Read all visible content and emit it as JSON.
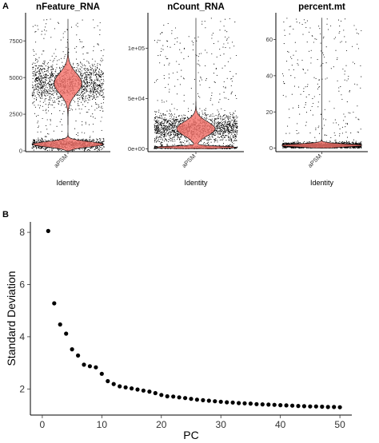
{
  "panel_labels": {
    "a": "A",
    "b": "B"
  },
  "chart_data": [
    {
      "type": "violin",
      "title": "nFeature_RNA",
      "xlabel": "Identity",
      "ylabel": "",
      "categories": [
        "aPSM"
      ],
      "ylim": [
        0,
        9200
      ],
      "yticks": [
        0,
        2500,
        5000,
        7500
      ],
      "ytick_labels": [
        "0",
        "2500",
        "5000",
        "7500"
      ],
      "fill_color": "#f4736b",
      "distribution": {
        "max": 9000,
        "modes": [
          {
            "center": 4600,
            "spread": 700,
            "weight": 0.6
          },
          {
            "center": 450,
            "spread": 180,
            "weight": 0.4
          }
        ]
      }
    },
    {
      "type": "violin",
      "title": "nCount_RNA",
      "xlabel": "Identity",
      "ylabel": "",
      "categories": [
        "aPSM"
      ],
      "ylim": [
        -2000,
        132000
      ],
      "yticks": [
        0,
        50000,
        100000
      ],
      "ytick_labels": [
        "0e+00",
        "5e+04",
        "1e+05"
      ],
      "fill_color": "#f4736b",
      "distribution": {
        "max": 130000,
        "modes": [
          {
            "center": 20000,
            "spread": 7000,
            "weight": 0.75
          },
          {
            "center": 1500,
            "spread": 1000,
            "weight": 0.25
          }
        ]
      }
    },
    {
      "type": "violin",
      "title": "percent.mt",
      "xlabel": "Identity",
      "ylabel": "",
      "categories": [
        "aPSM"
      ],
      "ylim": [
        -1.5,
        73
      ],
      "yticks": [
        0,
        20,
        40,
        60
      ],
      "ytick_labels": [
        "0",
        "20",
        "40",
        "60"
      ],
      "fill_color": "#f4736b",
      "distribution": {
        "max": 72,
        "modes": [
          {
            "center": 1.5,
            "spread": 0.8,
            "weight": 1.0
          }
        ]
      }
    },
    {
      "type": "scatter",
      "title": "",
      "xlabel": "PC",
      "ylabel": "Standard Deviation",
      "xlim": [
        -2,
        52
      ],
      "ylim": [
        1.0,
        8.4
      ],
      "xticks": [
        0,
        10,
        20,
        30,
        40,
        50
      ],
      "yticks": [
        2,
        4,
        6,
        8
      ],
      "x": [
        1,
        2,
        3,
        4,
        5,
        6,
        7,
        8,
        9,
        10,
        11,
        12,
        13,
        14,
        15,
        16,
        17,
        18,
        19,
        20,
        21,
        22,
        23,
        24,
        25,
        26,
        27,
        28,
        29,
        30,
        31,
        32,
        33,
        34,
        35,
        36,
        37,
        38,
        39,
        40,
        41,
        42,
        43,
        44,
        45,
        46,
        47,
        48,
        49,
        50
      ],
      "y": [
        8.05,
        5.28,
        4.47,
        4.12,
        3.52,
        3.28,
        2.93,
        2.87,
        2.83,
        2.58,
        2.3,
        2.19,
        2.1,
        2.06,
        2.02,
        1.98,
        1.94,
        1.9,
        1.84,
        1.77,
        1.72,
        1.71,
        1.68,
        1.65,
        1.62,
        1.59,
        1.57,
        1.55,
        1.53,
        1.51,
        1.49,
        1.48,
        1.46,
        1.45,
        1.44,
        1.42,
        1.41,
        1.4,
        1.39,
        1.38,
        1.37,
        1.36,
        1.35,
        1.34,
        1.33,
        1.33,
        1.32,
        1.31,
        1.31,
        1.3
      ]
    }
  ]
}
